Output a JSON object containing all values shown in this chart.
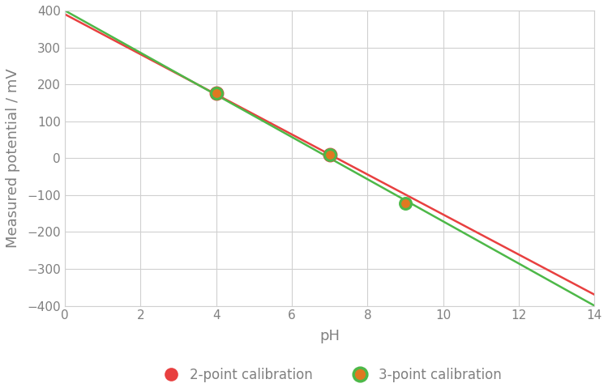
{
  "xlabel": "pH",
  "ylabel": "Measured potential / mV",
  "xlim": [
    0,
    14
  ],
  "ylim": [
    -400,
    400
  ],
  "xticks": [
    0,
    2,
    4,
    6,
    8,
    10,
    12,
    14
  ],
  "yticks": [
    -400,
    -300,
    -200,
    -100,
    0,
    100,
    200,
    300,
    400
  ],
  "red_line_x": [
    0,
    14
  ],
  "red_line_y": [
    390,
    -370
  ],
  "green_line_x": [
    0,
    14
  ],
  "green_line_y": [
    400,
    -400
  ],
  "red_line_color": "#e84040",
  "green_line_color": "#4db848",
  "points_x": [
    4,
    7,
    9
  ],
  "points_y": [
    175,
    10,
    -122
  ],
  "point_fill_color": "#e07820",
  "point_edge_color_red": "#e84040",
  "point_edge_color_green": "#4db848",
  "legend_2pt_fill": "#e84040",
  "legend_2pt_edge": "#e84040",
  "legend_3pt_fill": "#e07820",
  "legend_3pt_edge": "#4db848",
  "legend_2pt_label": "2-point calibration",
  "legend_3pt_label": "3-point calibration",
  "background_color": "#ffffff",
  "grid_color": "#d0d0d0",
  "line_width": 1.8,
  "tick_label_color": "#808080",
  "axis_label_color": "#808080",
  "tick_label_size": 11,
  "axis_label_size": 13,
  "point_size": 100,
  "point_edge_width": 2.2,
  "legend_marker_size": 12
}
